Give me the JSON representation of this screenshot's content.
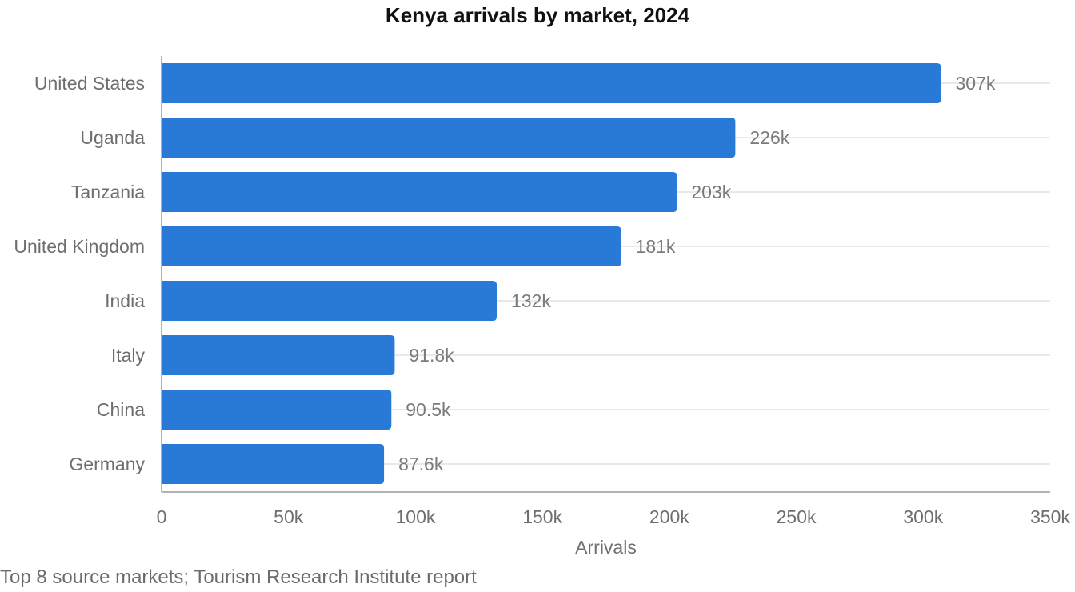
{
  "chart_data": {
    "type": "bar",
    "orientation": "horizontal",
    "title": "Kenya arrivals by market, 2024",
    "xlabel": "Arrivals",
    "ylabel": "",
    "xlim": [
      0,
      350000
    ],
    "x_ticks": [
      0,
      50000,
      100000,
      150000,
      200000,
      250000,
      300000,
      350000
    ],
    "x_tick_labels": [
      "0",
      "50k",
      "100k",
      "150k",
      "200k",
      "250k",
      "300k",
      "350k"
    ],
    "grid": true,
    "categories": [
      "United States",
      "Uganda",
      "Tanzania",
      "United Kingdom",
      "India",
      "Italy",
      "China",
      "Germany"
    ],
    "values": [
      307000,
      226000,
      203000,
      181000,
      132000,
      91800,
      90500,
      87600
    ],
    "value_labels": [
      "307k",
      "226k",
      "203k",
      "181k",
      "132k",
      "91.8k",
      "90.5k",
      "87.6k"
    ],
    "bar_color": "#2979d6",
    "footnote": "Top 8 source markets; Tourism Research Institute report"
  }
}
